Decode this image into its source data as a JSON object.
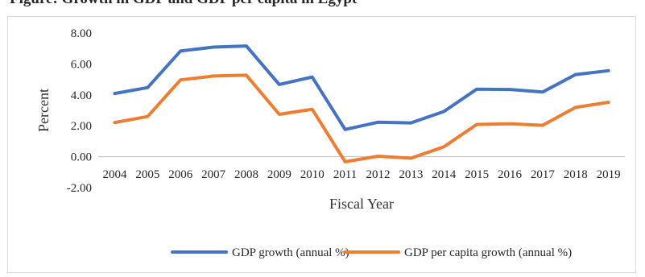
{
  "chart_data": {
    "type": "line",
    "title": "Figure: Growth in GDP and GDP per capita in Egypt",
    "xlabel": "Fiscal Year",
    "ylabel": "Percent",
    "categories": [
      "2004",
      "2005",
      "2006",
      "2007",
      "2008",
      "2009",
      "2010",
      "2011",
      "2012",
      "2013",
      "2014",
      "2015",
      "2016",
      "2017",
      "2018",
      "2019"
    ],
    "ylim": [
      -2,
      8
    ],
    "yticks": [
      "-2.00",
      "0.00",
      "2.00",
      "4.00",
      "6.00",
      "8.00"
    ],
    "grid": false,
    "legend_position": "bottom",
    "series": [
      {
        "name": "GDP growth (annual %)",
        "color": "#4472C4",
        "values": [
          4.09,
          4.47,
          6.84,
          7.09,
          7.16,
          4.67,
          5.15,
          1.76,
          2.23,
          2.19,
          2.92,
          4.37,
          4.35,
          4.18,
          5.31,
          5.56
        ]
      },
      {
        "name": "GDP per capita growth (annual %)",
        "color": "#ED7D31",
        "values": [
          2.21,
          2.6,
          4.97,
          5.22,
          5.27,
          2.74,
          3.07,
          -0.33,
          0.03,
          -0.1,
          0.64,
          2.09,
          2.13,
          2.03,
          3.19,
          3.52
        ]
      }
    ]
  }
}
